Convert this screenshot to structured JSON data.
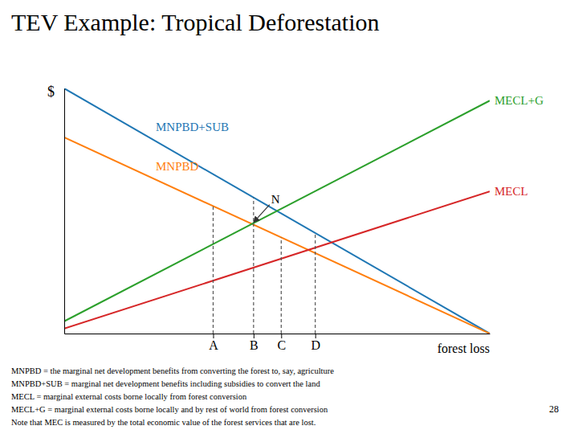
{
  "chart_data": {
    "type": "line",
    "title": "TEV Example: Tropical Deforestation",
    "xlabel": "forest loss",
    "ylabel": "$",
    "xlim": [
      0,
      10
    ],
    "ylim": [
      0,
      10
    ],
    "xticks": [
      {
        "value": 3.5,
        "label": "A"
      },
      {
        "value": 4.45,
        "label": "B"
      },
      {
        "value": 5.1,
        "label": "C"
      },
      {
        "value": 5.9,
        "label": "D"
      }
    ],
    "yticks": [],
    "tick_labels": "x",
    "grid": false,
    "series": [
      {
        "name": "MNPBD+SUB",
        "x": [
          0,
          10
        ],
        "values": [
          10.0,
          0.0
        ]
      },
      {
        "name": "MNPBD",
        "x": [
          0,
          10
        ],
        "values": [
          8.0,
          0.0
        ]
      },
      {
        "name": "MECL+G",
        "x": [
          0,
          10
        ],
        "values": [
          0.5,
          9.5
        ]
      },
      {
        "name": "MECL",
        "x": [
          0,
          10
        ],
        "values": [
          0.2,
          5.8
        ]
      }
    ],
    "vlines": {
      "x": [
        3.5,
        4.45,
        5.1,
        5.9
      ],
      "y": [
        5.2,
        5.55,
        3.92,
        4.1
      ]
    },
    "annotations": [
      {
        "text": "N",
        "x": 4.411764705882353,
        "y": 4.470588235294118
      }
    ],
    "footnotes": [
      "MNPBD = the marginal net development benefits from converting the forest to, say, agriculture",
      "MNPBD+SUB = marginal net development benefits including subsidies to convert the land",
      "MECL = marginal external costs borne locally from forest conversion",
      "MECL+G = marginal external costs borne locally and by rest of world from forest conversion",
      "Note that MEC is measured by the total economic value of the forest services that are lost."
    ],
    "page_number": "28"
  }
}
